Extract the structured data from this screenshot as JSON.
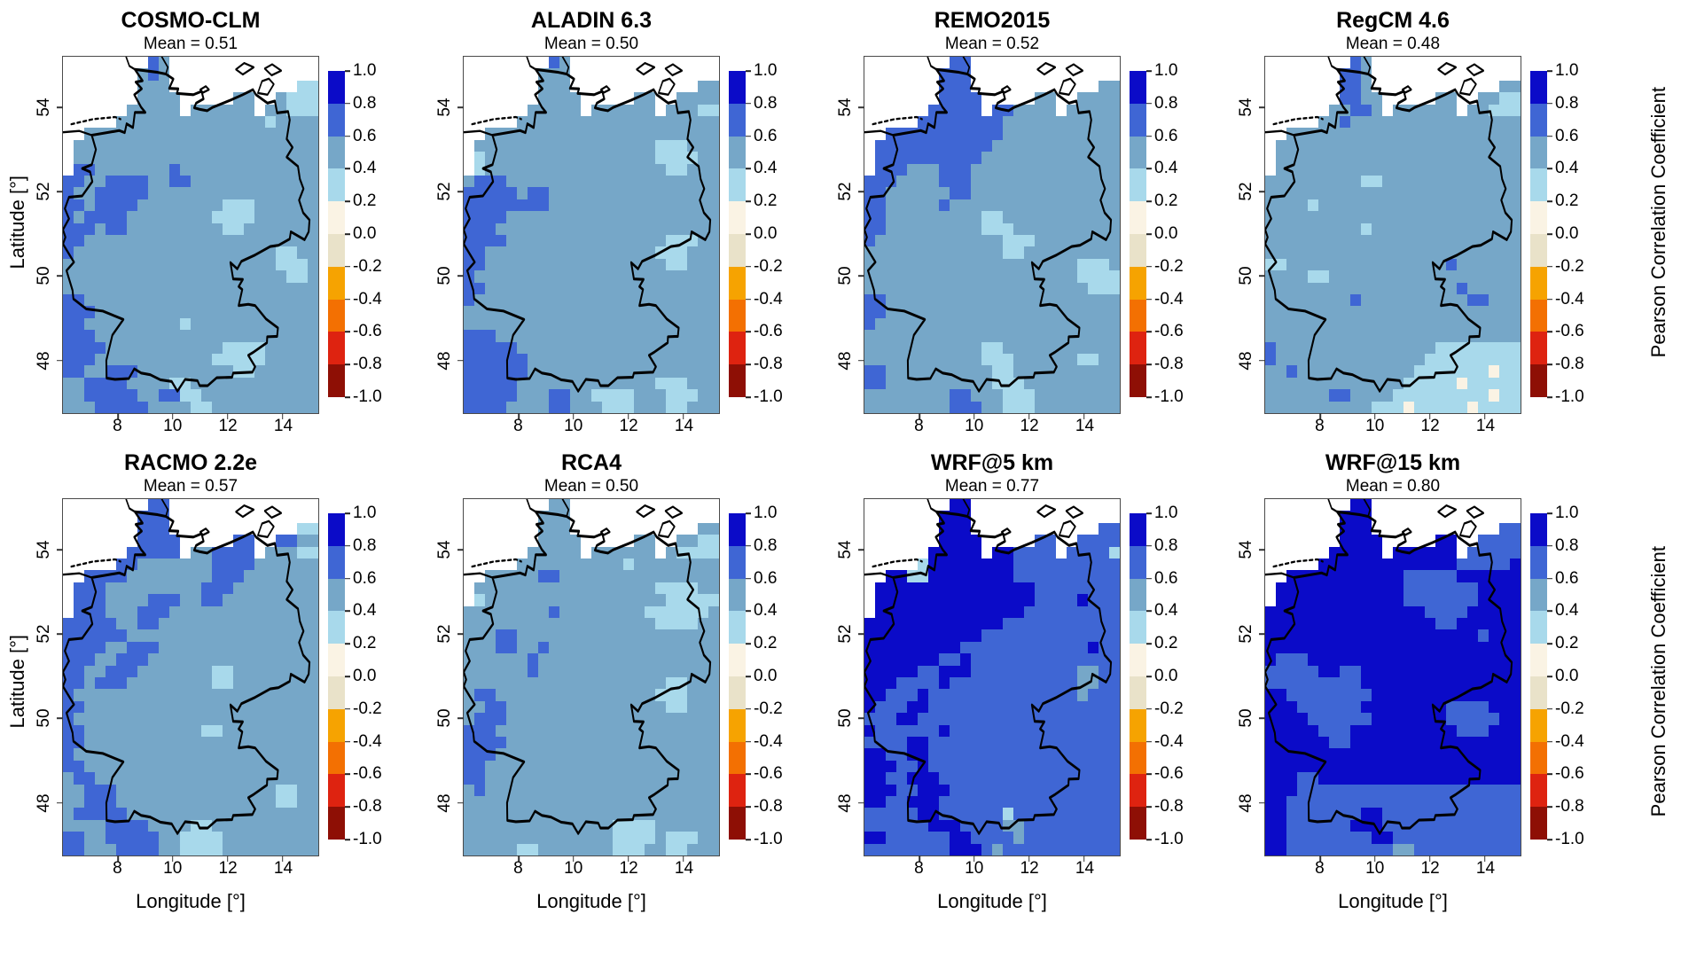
{
  "figure": {
    "background": "#ffffff"
  },
  "axes": {
    "x_label": "Longitude [°]",
    "y_label": "Latitude [°]",
    "x_tick_labels": [
      "8",
      "10",
      "12",
      "14"
    ],
    "x_tick_values": [
      8,
      10,
      12,
      14
    ],
    "y_tick_labels": [
      "54",
      "52",
      "50",
      "48"
    ],
    "y_tick_values": [
      54,
      52,
      50,
      48
    ]
  },
  "colorbar": {
    "label": "Pearson Correlation Coefficient",
    "tick_labels": [
      "1.0",
      "0.8",
      "0.6",
      "0.4",
      "0.2",
      "0.0",
      "-0.2",
      "-0.4",
      "-0.6",
      "-0.8",
      "-1.0"
    ],
    "segment_colors_top_to_bottom": [
      "#0b0bc8",
      "#3f66d4",
      "#76a7c8",
      "#a8d9eb",
      "#faf3e4",
      "#e9e2c9",
      "#f6a301",
      "#f37002",
      "#de2310",
      "#8e0f05"
    ]
  },
  "cell_colors": {
    ".": "#ffffff",
    "l": "#a8d9eb",
    "s": "#76a7c8",
    "r": "#3f66d4",
    "d": "#0b0bc8",
    "c": "#faf3e4"
  },
  "cell_encoding": {
    "d": "0.8 to 1.0",
    "r": "0.6 to 0.8",
    "s": "0.4 to 0.6",
    "l": "0.2 to 0.4",
    "c": "0.0 to 0.2",
    ".": "no data"
  },
  "chart_data": {
    "type": "heatmap",
    "description": "Pearson correlation coefficient of 8 regional climate models vs observations over Germany",
    "x": {
      "label": "Longitude [°]",
      "ticks": [
        8,
        10,
        12,
        14
      ],
      "range": [
        6.0,
        15.3
      ]
    },
    "y": {
      "label": "Latitude [°]",
      "ticks": [
        54,
        52,
        50,
        48
      ],
      "range": [
        46.75,
        55.2
      ]
    },
    "colorbar": {
      "label": "Pearson Correlation Coefficient",
      "range": [
        -1,
        1
      ],
      "tick_step": 0.2
    },
    "panels": [
      {
        "title": "COSMO-CLM",
        "subtitle": "Mean = 0.51",
        "mean": 0.51,
        "grid": [
          "........rs..............",
          ".......srs..............",
          ".......sss............ll",
          ".......ssss.....ss..slll",
          "......sssss.ssssss.sslll",
          ".....sssssssssssssslssss",
          "..ssssssssssssssssssssss",
          ".sssssssssssssssssssssss",
          ".sssssssssssssssssssssss",
          ".rrsssssssrsssssssssssss",
          "rrssrrrrssrrssssssssssss",
          "rssrrrrrssssssssssssssss",
          "rrsrrrrsssssssslllssssss",
          "rsrrrrssssssssllllssssss",
          "rrrsrrsssssssssllsssssss",
          "rrssssssssssssssssssssss",
          "rsssssssssssssssssssllss",
          "ssssssssssssssssssssllls",
          "ssssssssssssssssssssslls",
          "ssssssssssssssssssssssss",
          "rrssssssssssssssssssssss",
          "rrrsssssssssssssssssssss",
          "rrssssssssslssssssssssss",
          "rrrsssssssssssssssssssss",
          "rrrrsssssssssssllllsssss",
          "rrrssssssssssslllllsssss",
          "rrssrrrsssssssssllssssss",
          "ssrrrrssssllssssssssssss",
          "ssrrrrrssrrllsssssssssss",
          "sssrrrrrssssllssssssssss"
        ]
      },
      {
        "title": "ALADIN 6.3",
        "subtitle": "Mean = 0.50",
        "mean": 0.5,
        "grid": [
          "........rs..............",
          ".......sss..............",
          ".......sss............ss",
          ".......ssss.....ss..ssss",
          "......sssss.ssssss.sssll",
          ".....sssssssssssssssssss",
          "..ssssssssssssssssssssss",
          ".ssssssssssssssssslllsss",
          ".lssssssssssssssssllllss",
          ".lsssssssssssssssssllsss",
          "srrrssssssssssssssssssss",
          "rrrrrsrrssssssssssssssss",
          "rrrrrrrrssssssssssssssss",
          "rrrrssssssssssssssssssss",
          "rrrsssssssssssssssssssss",
          "rrrrssssssssssssssslllss",
          "rrsssssssssssssssslllsss",
          "rrsssssssssssssssssllsss",
          "rsssssssssssssssssssssss",
          "rrssssssssssssssssssssss",
          "rsssssssssssssssssssssss",
          "ssssssssssssssssssssssss",
          "ssssssssssssssssssssssss",
          "rrrsssssssssssssssssssss",
          "rrrrrsssssssssssssssssss",
          "rrrrrrssssssssssssssssss",
          "rrrrrrssssssssssssssssss",
          "rrrrrssssssssssssslllsss",
          "rrrrrsssrrssllllssslllss",
          "rrrrssssrrssslllsssllsss"
        ]
      },
      {
        "title": "REMO2015",
        "subtitle": "Mean = 0.52",
        "mean": 0.52,
        "grid": [
          "........rr..............",
          ".......rrr..............",
          ".......rrr............ss",
          ".......rrrr.....ss..ssss",
          "......rrrrr.rrssss.sssss",
          ".....rrrrrrrrsssssssssss",
          "..rrrrrrrrrrrsssssssssss",
          ".rrrrrrrrrrrssssssssssss",
          ".rrrrrrrrrrsssssssssssss",
          ".rrrsssrrrssssssssssssss",
          "rrrssssrrrssssssssssssss",
          "rrssssssrrssssssssssssss",
          "rrsssssrssssssssssssssss",
          "rrsssssssssllsssssssssss",
          "rrssssssssslllssssssssss",
          "rsssssssssssslllssssssss",
          "sssssssssssssllsssssssss",
          "ssssssssssssssssssssllls",
          "ssssssssssssssssssssllll",
          "ssssssssssssssssssssslll",
          "rrssssssssssssssssssssss",
          "rrssssssssssssssssssssss",
          "rsssssssssssssssssssssss",
          "ssssssssssssssssssssssss",
          "sssssssssssllsssssssssss",
          "ssssssssssslllssssssllss",
          "rrssssssssssllssssssssss",
          "rrsssssssssslllsssssssss",
          "ssssssssrrssslllssssssss",
          "ssssssssrrrsslllssssssss"
        ]
      },
      {
        "title": "RegCM 4.6",
        "subtitle": "Mean = 0.48",
        "mean": 0.48,
        "grid": [
          "........rs..............",
          ".......rrs..............",
          ".......rrs............ss",
          ".......rrss.....ss..ssll",
          "......ssrrs.ssssss.sslll",
          ".....ssrssssssssssssssss",
          "..ssssssssssssssssssssss",
          ".sssssssssssssssssssssss",
          ".sssssssssssssssssssssss",
          ".sssssssssssssssssssssss",
          "sssssssssllsssssssssssss",
          "ssssssssssssssssssssssss",
          "sssslsssssssssssssssssss",
          "ssssssssssssssssssssssss",
          "ssssssssslssssssssssssss",
          "ssssssssssssssssssssssss",
          "ssssssssssssssssssssssss",
          "llsssssssssssssssrssssss",
          "ssssllssssssssssssssssss",
          "ssssssssssssssssssrsssss",
          "ssssssssrssssssssssrrsss",
          "ssssssssssssssssssssssss",
          "ssssssssssssssssssssssss",
          "ssssssssssssssssssssssss",
          "rsssssssssssssssllllllll",
          "rsssssssssssssslllllllll",
          "ssrssssssssssslllllllcll",
          "ssssssssssssslllllclllll",
          "ssssssrrsssslllllllllcll",
          "sssssssssslllclllllcllll"
        ]
      },
      {
        "title": "RACMO 2.2e",
        "subtitle": "Mean = 0.57",
        "mean": 0.57,
        "grid": [
          "........rr..............",
          ".......rrr..............",
          ".......rrr............ll",
          ".......rrrr.....rr..rrss",
          "......rrrrr.ssrrrr.sssll",
          ".....rrsssssssrrrrssssss",
          "..rrrrssssssssrrrsssssss",
          ".rrrsssssssssrrrssssssss",
          ".rrrssssrrrssrrsssssssss",
          ".rrrsssrrrssssssssssssss",
          "rrrrrssrrsssssssssssssss",
          "rrrrrrssssssssssssssssss",
          "rrrrssrrrsssssssssssssss",
          "rrrssrrrssssssssssssssss",
          "rrssrrrsssssssllssssssss",
          "rrsrrrssssssssllssssssss",
          "rsssssssssssssssssssssss",
          "rrssssssssssssssssssssss",
          "rsssssssssssssssssssssss",
          "rrsssssssssssllsssssssss",
          "rrssssssssssssssssssssss",
          "rsssssssssssssssssssssss",
          "rrssssssssssssssssssssss",
          "srrsssssssssssssssssssss",
          "ssrrrsssssssssssssssllss",
          "ssrrrsssssssssssssssllss",
          "srrrrrssssssssssssssssss",
          "ssssrrrrssssllssssssssss",
          "rrssrrrrrssllllsssssssss",
          "rrsssrrrrssllllsssssssss"
        ]
      },
      {
        "title": "RCA4",
        "subtitle": "Mean = 0.50",
        "mean": 0.5,
        "grid": [
          "........ss..............",
          ".......sss..............",
          ".......sss............ss",
          ".......ssss.....ss..ssll",
          "......sssss.ssssss.sllll",
          ".....sssssssssslssssssss",
          "..sssssrrsssssssssssssss",
          ".sssssssssssssssssllllss",
          ".lssssssssssssssssslllll",
          "ssssssssrsssssssslllllls",
          "ssssssssssssssssssllllss",
          "sssrrsssssssssssssssssss",
          "sssrrssrssssssssssssssss",
          "ssssssrsssssssssssssssss",
          "ssssssrsssssssssssssssss",
          "sssssssssssssssssssllsss",
          "srrssssssssssssssslllsss",
          "ssrrsssssssssssssssllsss",
          "srrrssssssssssssssssssss",
          "rrrsssssssssssssssssssss",
          "rrrrssssssssssssssssssss",
          "rrrsssssssssssssssssssss",
          "rrssssssssssssssssssssss",
          "rrssssssssssssssssssssss",
          "srssssssssssssssssssssss",
          "ssssssssssssssssssssssss",
          "ssssssssssssssssssssssss",
          "ssssssssssssssllllssssss",
          "ssssssssssssssllllslllss",
          "sssssllssssssslllssllsss"
        ]
      },
      {
        "title": "WRF@5 km",
        "subtitle": "Mean = 0.77",
        "mean": 0.77,
        "grid": [
          "........dd..............",
          ".......ddd..............",
          ".......ddd............rr",
          ".......dddd.....rr..rrrr",
          "......ddddd.ddrrrr.rrrrl",
          ".....lddddddddrrrrrrrrrr",
          "..ddllddddddddrrrrrrrrrr",
          ".dddddddddddddddrrrrrrrr",
          ".dddddddddddddddrrrrdrrr",
          ".ddddddddddddddrrrrrrrrr",
          "dddddddddddddrrrrrrrrrrr",
          "dddddddddddrrrrrrrrrrrrr",
          "dddddddddrrrrrrrrrrrrdrr",
          "dddddddrrdrrrrrrrrrrrrrr",
          "dddddrrdddrrrrrrrrrrssrr",
          "dddrrrrdrrrrrrrrrrrrssrr",
          "ddrrrdrrrrrrrrrrrrrrsrrr",
          "drrrddrrrrrrrrrrrrrrrrrr",
          "rrrddrrrrrrrrrrrrrrrrrrr",
          "drrrrrrdrrrrrrrrrrrrrrrr",
          "rrrrddrrrrrrrrrrrrrrrrrr",
          "ddrrddrrrrrrrrrrrrrrrrrr",
          "dddrrdrrrrrrrrrrrrrrrrrr",
          "ddrrdddrrrrrrrrrrrrrrrrr",
          "dddrrdddrrrrrrrrrrrrrrrr",
          "ddrrdddrrrrrrrrrrrrrrrrr",
          "rrrrrddrrrrrrlrrrrrrrrrr",
          "rrrrrrdddrrrrssrrrrrrrrr",
          "ddrrrrrrddrrrrsrrrrrrrrr",
          "rrrrrrrrdddrsrrrrrrrrrrr"
        ]
      },
      {
        "title": "WRF@15 km",
        "subtitle": "Mean = 0.80",
        "mean": 0.8,
        "grid": [
          "........dd..............",
          ".......ddd..............",
          ".......ddd............rr",
          ".......dddd.....dd..rrrr",
          "......ddddd.dddddd.rrrrr",
          ".....dddddddddddddrrrrrd",
          "..dddddddddddrrrrrdddddd",
          ".ddddddddddddrrrrrrrdddd",
          ".ddddddddddddrrrrrrrdddd",
          "dddddddddddddddrrrrddddd",
          "ddddddddddddddddrrdddddd",
          "ddddddddddddddddddddrddd",
          "dddddddddddddddddddddddd",
          "drrrdddddddddddddddddddd",
          "rrrrrddrrddddddddddddddd",
          "rrrrrrrrrddddddddddddddd",
          "ddrrrrrrrrdddddddddddddd",
          "dddrrrrrrddddddddrrrrddd",
          "ddddrrrrrrdddddddrrrrrdd",
          "dddddrrrddddddddddrrrddd",
          "ddddddrrdddddddddddddddd",
          "dddddddddddddddddddddddd",
          "dddddddddddddddddddddddd",
          "dddrrddddddddddddddddddd",
          "dddrrrrrrrrrrrrrrrrrrrrr",
          "ddrrrrrrrrrrrrrrrrrrrrrr",
          "ddrrrrrrrddrrrrrrrrrrrrr",
          "ddrrrrrrdddrrrrrrrrrrrrr",
          "ddrrrrrrrrddrrrrrrrrrrrr",
          "ddrrrrrrrrrrssrrrrrrrrrr"
        ]
      }
    ]
  }
}
